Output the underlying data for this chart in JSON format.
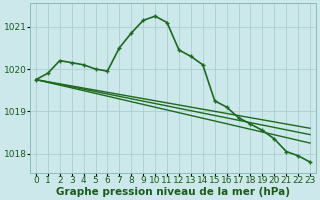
{
  "background_color": "#cce8ea",
  "grid_color": "#aad0d0",
  "line_color": "#1a6b1a",
  "xlabel": "Graphe pression niveau de la mer (hPa)",
  "xlabel_fontsize": 7.5,
  "tick_fontsize": 6.5,
  "ylim": [
    1017.55,
    1021.55
  ],
  "xlim": [
    -0.5,
    23.5
  ],
  "yticks": [
    1018,
    1019,
    1020,
    1021
  ],
  "xticks": [
    0,
    1,
    2,
    3,
    4,
    5,
    6,
    7,
    8,
    9,
    10,
    11,
    12,
    13,
    14,
    15,
    16,
    17,
    18,
    19,
    20,
    21,
    22,
    23
  ],
  "series": [
    {
      "x": [
        0,
        1,
        2,
        3,
        4,
        5,
        6,
        7,
        8,
        9,
        10,
        11,
        12,
        13,
        14,
        15,
        16,
        17,
        18,
        19,
        20,
        21,
        22,
        23
      ],
      "y": [
        1019.75,
        1019.9,
        1020.2,
        1020.15,
        1020.1,
        1020.0,
        1019.95,
        1020.5,
        1020.85,
        1021.15,
        1021.25,
        1021.1,
        1020.45,
        1020.3,
        1020.1,
        1019.25,
        1019.1,
        1018.85,
        1018.7,
        1018.55,
        1018.35,
        1018.05,
        1017.95,
        1017.8
      ],
      "with_markers": true,
      "lw": 1.2
    },
    {
      "x": [
        0,
        23
      ],
      "y": [
        1019.75,
        1018.25
      ],
      "with_markers": false,
      "lw": 1.0
    },
    {
      "x": [
        0,
        23
      ],
      "y": [
        1019.75,
        1018.45
      ],
      "with_markers": false,
      "lw": 1.0
    },
    {
      "x": [
        0,
        23
      ],
      "y": [
        1019.75,
        1018.6
      ],
      "with_markers": false,
      "lw": 1.0
    }
  ]
}
